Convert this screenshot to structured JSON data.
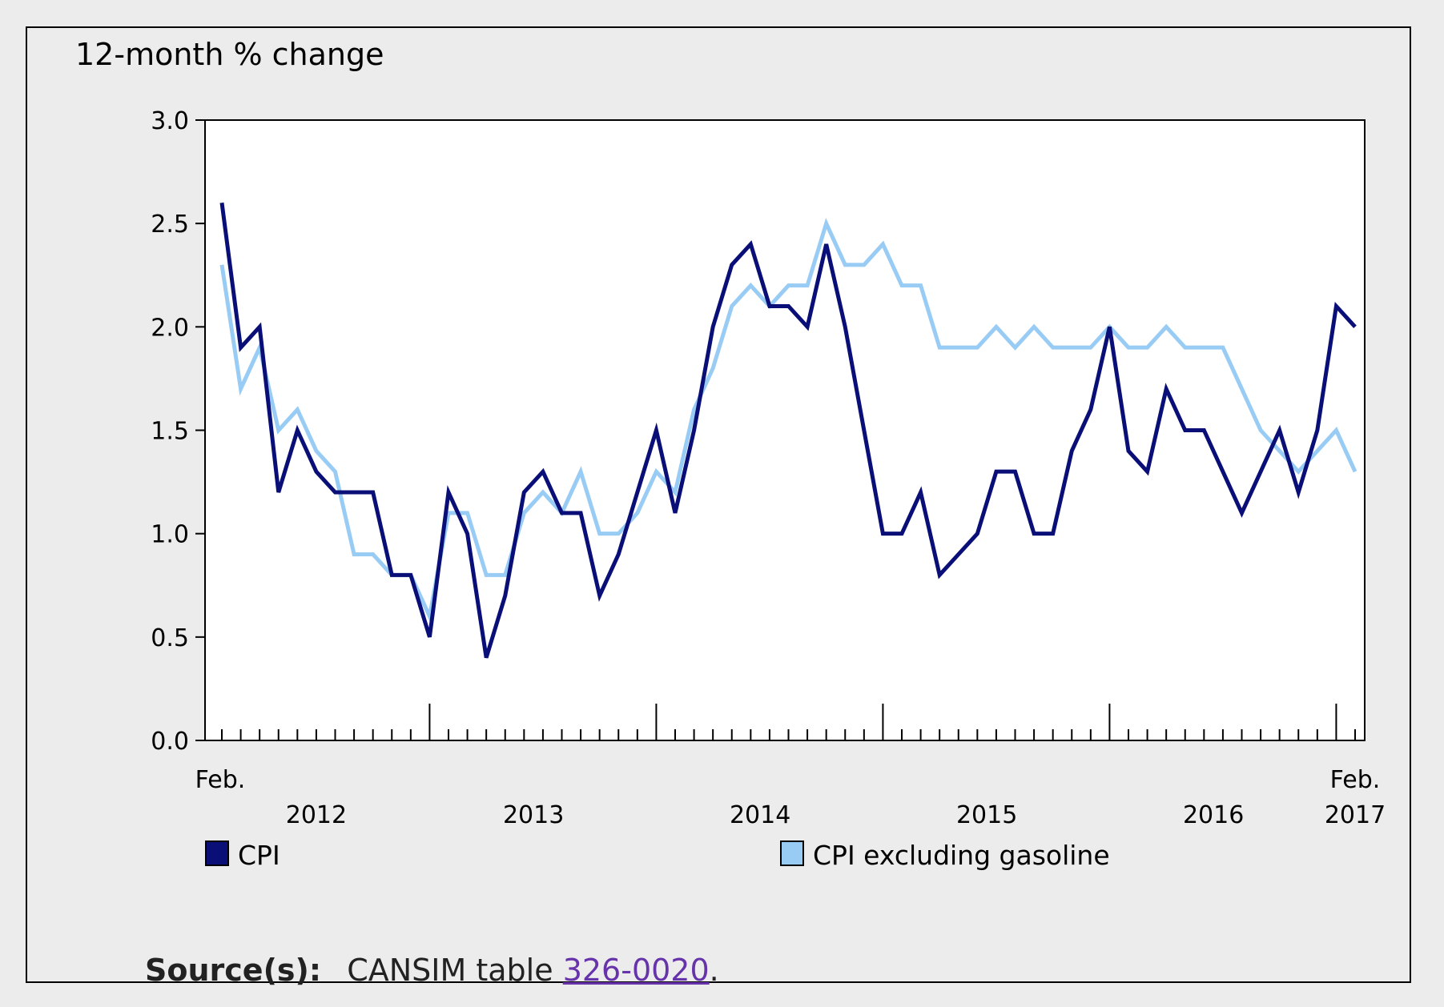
{
  "source": {
    "label": "Source(s):",
    "prefix": "CANSIM table ",
    "link_text": "326-0020",
    "suffix": "."
  },
  "chart_data": {
    "type": "line",
    "title": "",
    "ylabel": "12-month % change",
    "xlabel": "",
    "ylim": [
      0,
      3
    ],
    "yticks": [
      "0.0",
      "0.5",
      "1.0",
      "1.5",
      "2.0",
      "2.5",
      "3.0"
    ],
    "x_start_label": "Feb.",
    "x_end_label": "Feb.",
    "year_labels": [
      "2012",
      "2013",
      "2014",
      "2015",
      "2016",
      "2017"
    ],
    "x_start": "2012-02",
    "x_end": "2017-02",
    "grid": false,
    "legend_position": "bottom",
    "series": [
      {
        "name": "CPI",
        "color": "#0a0f78",
        "values": [
          2.6,
          1.9,
          2.0,
          1.2,
          1.5,
          1.3,
          1.2,
          1.2,
          1.2,
          0.8,
          0.8,
          0.5,
          1.2,
          1.0,
          0.4,
          0.7,
          1.2,
          1.3,
          1.1,
          1.1,
          0.7,
          0.9,
          1.2,
          1.5,
          1.1,
          1.5,
          2.0,
          2.3,
          2.4,
          2.1,
          2.1,
          2.0,
          2.4,
          2.0,
          1.5,
          1.0,
          1.0,
          1.2,
          0.8,
          0.9,
          1.0,
          1.3,
          1.3,
          1.0,
          1.0,
          1.4,
          1.6,
          2.0,
          1.4,
          1.3,
          1.7,
          1.5,
          1.5,
          1.3,
          1.1,
          1.3,
          1.5,
          1.2,
          1.5,
          2.1,
          2.0
        ]
      },
      {
        "name": "CPI excluding gasoline",
        "color": "#99ccf5",
        "values": [
          2.3,
          1.7,
          1.9,
          1.5,
          1.6,
          1.4,
          1.3,
          0.9,
          0.9,
          0.8,
          0.8,
          0.6,
          1.1,
          1.1,
          0.8,
          0.8,
          1.1,
          1.2,
          1.1,
          1.3,
          1.0,
          1.0,
          1.1,
          1.3,
          1.2,
          1.6,
          1.8,
          2.1,
          2.2,
          2.1,
          2.2,
          2.2,
          2.5,
          2.3,
          2.3,
          2.4,
          2.2,
          2.2,
          1.9,
          1.9,
          1.9,
          2.0,
          1.9,
          2.0,
          1.9,
          1.9,
          1.9,
          2.0,
          1.9,
          1.9,
          2.0,
          1.9,
          1.9,
          1.9,
          1.7,
          1.5,
          1.4,
          1.3,
          1.4,
          1.5,
          1.3
        ]
      }
    ]
  }
}
